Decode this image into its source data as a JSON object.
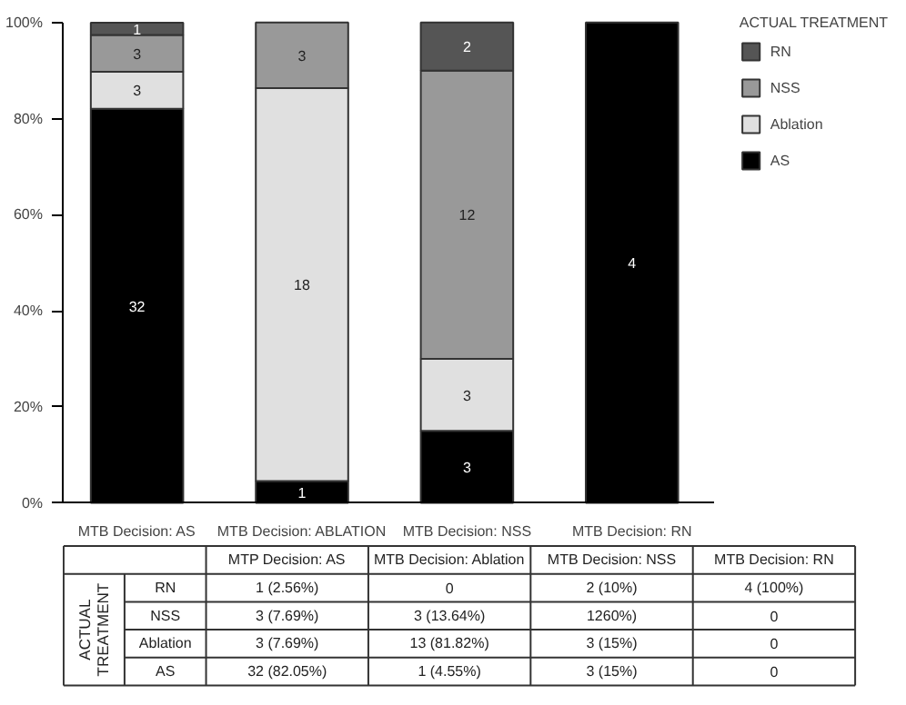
{
  "chart_data": [
    {
      "type": "bar",
      "stacked": true,
      "categories": [
        "MTB Decision: AS",
        "MTB Decision: ABLATION",
        "MTB Decision: NSS",
        "MTB Decision: RN"
      ],
      "series": [
        {
          "name": "AS",
          "color": "#000000",
          "values": [
            82.05,
            4.55,
            15,
            100
          ]
        },
        {
          "name": "Ablation",
          "color": "#e0e0e0",
          "values": [
            7.69,
            81.82,
            15,
            0
          ]
        },
        {
          "name": "NSS",
          "color": "#999999",
          "values": [
            7.69,
            13.64,
            60,
            0
          ]
        },
        {
          "name": "RN",
          "color": "#555555",
          "values": [
            2.56,
            0,
            10,
            0
          ]
        }
      ],
      "annotations": [
        "32",
        "3",
        "3",
        "1",
        "1",
        "18",
        "3",
        "3",
        "3",
        "12",
        "2",
        "4"
      ],
      "ylim": [
        0,
        100
      ],
      "yticks": [
        {
          "value": 0,
          "label": "0%"
        },
        {
          "value": 20,
          "label": "20%"
        },
        {
          "value": 40,
          "label": "40%"
        },
        {
          "value": 60,
          "label": "60%"
        },
        {
          "value": 80,
          "label": "80%"
        },
        {
          "value": 100,
          "label": "100%"
        }
      ],
      "legend": "right",
      "legend_title": "ACTUAL TREATMENT",
      "grid": false
    },
    {
      "type": "other",
      "ylabel": "ACTUAL TREATMENT",
      "categories": [
        "MTP Decision: AS",
        "MTB Decision: Ablation",
        "MTB Decision: NSS",
        "MTB Decision: RN"
      ],
      "y_categories": [
        "RN",
        "NSS",
        "Ablation",
        "AS"
      ],
      "cell_labels": [
        [
          "1 (2.56%)",
          "0",
          "2 (10%)",
          "4 (100%)"
        ],
        [
          "3 (7.69%)",
          "3 (13.64%)",
          "1260%)",
          "0"
        ],
        [
          "3 (7.69%)",
          "13 (81.82%)",
          "3 (15%)",
          "0"
        ],
        [
          "32 (82.05%)",
          "1 (4.55%)",
          "3 (15%)",
          "0"
        ]
      ]
    }
  ]
}
